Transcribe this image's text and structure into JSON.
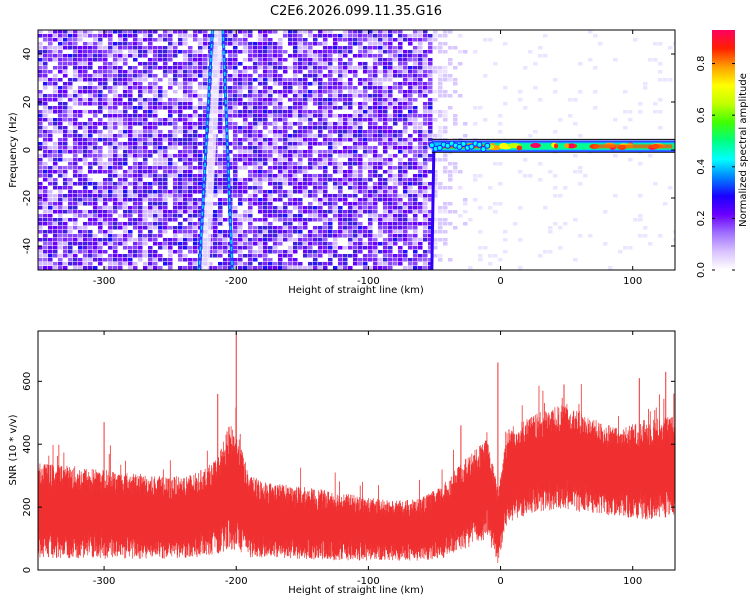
{
  "title": "C2E6.2026.099.11.35.G16",
  "chart_data": [
    {
      "type": "heatmap",
      "xlabel": "Height of straight line (km)",
      "ylabel": "Frequency (Hz)",
      "xlim": [
        -350,
        132
      ],
      "ylim": [
        -50,
        50
      ],
      "x_ticks": [
        -300,
        -200,
        -100,
        0,
        100
      ],
      "y_ticks": [
        -40,
        -20,
        0,
        20,
        40
      ],
      "colorbar": {
        "label": "Normalized spectral amplitude",
        "range": [
          0,
          0.93
        ],
        "ticks": [
          0.0,
          0.2,
          0.4,
          0.6,
          0.8
        ],
        "colors": [
          "#ffffff",
          "#d9c2ff",
          "#a070ff",
          "#6a00ff",
          "#1a00ff",
          "#0080ff",
          "#00ffff",
          "#00ff80",
          "#40ff00",
          "#c0ff00",
          "#ffff00",
          "#ffa000",
          "#ff2000",
          "#ff0060"
        ]
      },
      "features": {
        "noise_region": [
          -350,
          -52
        ],
        "tone_region": [
          -52,
          132
        ],
        "tone_frequency_hz": 1.5,
        "drift_lines": [
          {
            "x_at_ymax": -218,
            "x_at_ymin": -228
          },
          {
            "x_at_ymax": -210,
            "x_at_ymin": -203
          }
        ]
      }
    },
    {
      "type": "line",
      "xlabel": "Height of straight line (km)",
      "ylabel": "SNR (10 * v/v)",
      "xlim": [
        -350,
        132
      ],
      "ylim": [
        0,
        760
      ],
      "x_ticks": [
        -300,
        -200,
        -100,
        0,
        100
      ],
      "y_ticks": [
        0,
        200,
        400,
        600
      ],
      "color": "#f03030",
      "series": [
        {
          "x": [
            -350,
            -330,
            -310,
            -290,
            -270,
            -250,
            -230,
            -215,
            -205,
            -198,
            -190,
            -175,
            -150,
            -125,
            -100,
            -80,
            -60,
            -45,
            -30,
            -20,
            -10,
            -2,
            5,
            20,
            35,
            50,
            70,
            90,
            110,
            132
          ],
          "mean": [
            190,
            185,
            180,
            175,
            170,
            165,
            175,
            200,
            265,
            240,
            170,
            160,
            150,
            140,
            130,
            125,
            130,
            150,
            200,
            230,
            260,
            140,
            300,
            330,
            350,
            360,
            330,
            310,
            320,
            330
          ],
          "band": [
            150,
            150,
            145,
            140,
            135,
            130,
            135,
            150,
            200,
            180,
            130,
            120,
            115,
            110,
            100,
            95,
            100,
            115,
            140,
            150,
            160,
            120,
            150,
            155,
            160,
            170,
            150,
            140,
            160,
            160
          ],
          "spikes": [
            {
              "x": -200,
              "y": 755
            },
            {
              "x": -214,
              "y": 560
            },
            {
              "x": -2,
              "y": 660
            },
            {
              "x": -300,
              "y": 470
            },
            {
              "x": 105,
              "y": 610
            },
            {
              "x": 125,
              "y": 630
            },
            {
              "x": 48,
              "y": 590
            },
            {
              "x": -30,
              "y": 460
            }
          ]
        }
      ]
    }
  ]
}
